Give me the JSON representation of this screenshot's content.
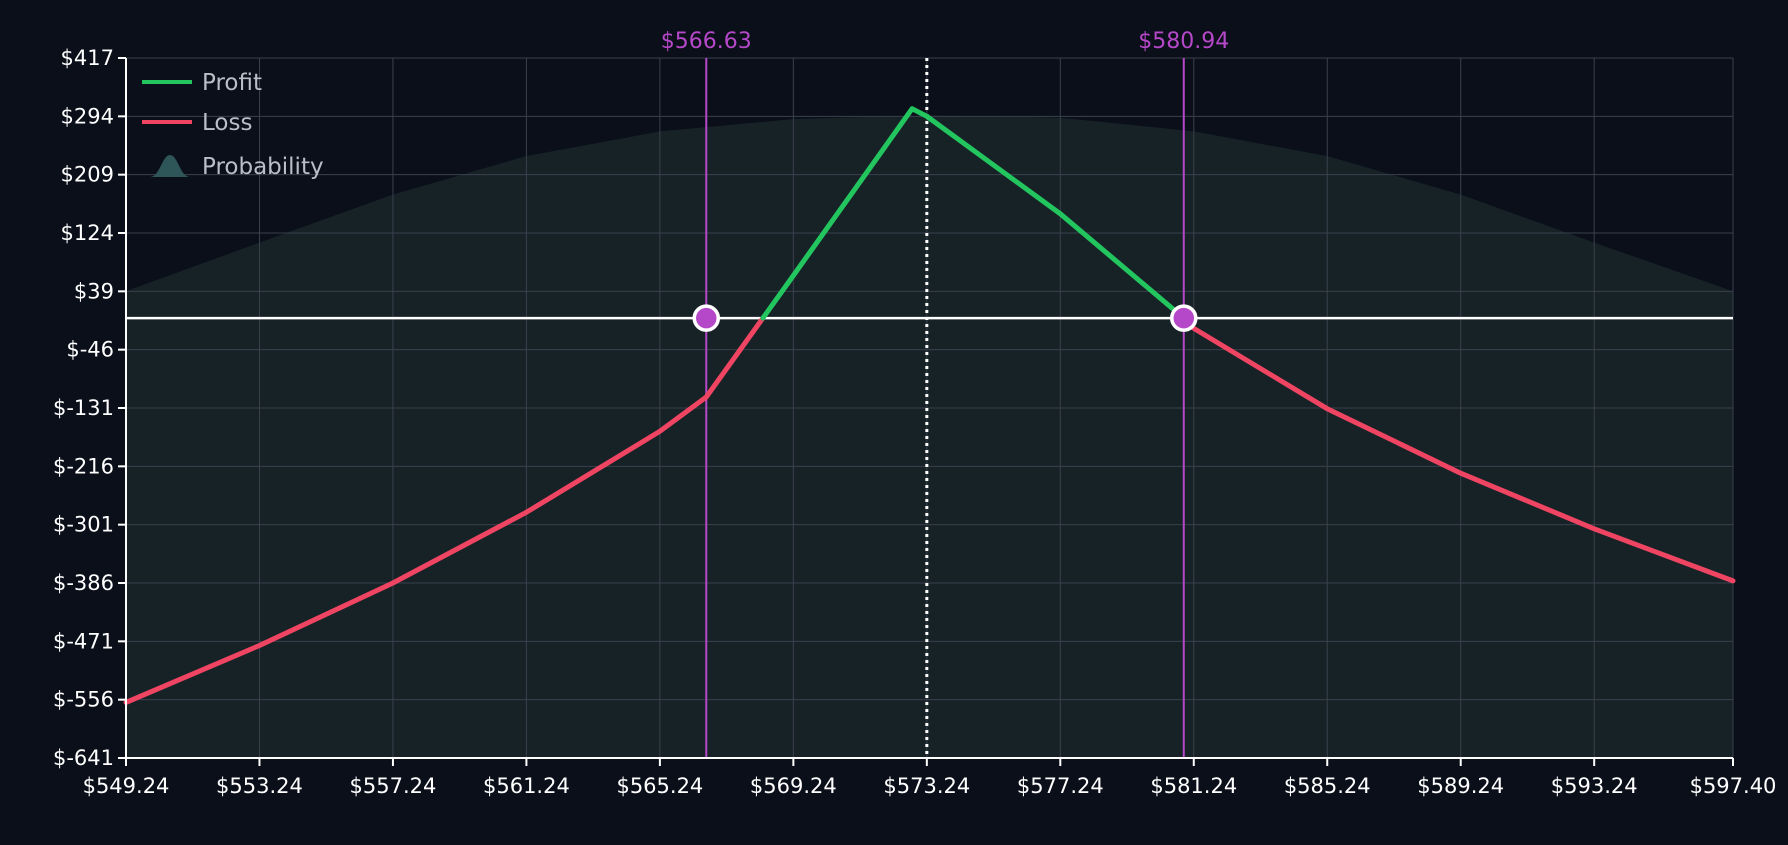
{
  "chart_data": {
    "type": "line",
    "title": "",
    "xlabel": "",
    "ylabel": "",
    "xlim": [
      549.24,
      597.4
    ],
    "ylim": [
      -641,
      417
    ],
    "x_ticks": [
      "$549.24",
      "$553.24",
      "$557.24",
      "$561.24",
      "$565.24",
      "$569.24",
      "$573.24",
      "$577.24",
      "$581.24",
      "$585.24",
      "$589.24",
      "$593.24",
      "$597.40"
    ],
    "x_tick_values": [
      549.24,
      553.24,
      557.24,
      561.24,
      565.24,
      569.24,
      573.24,
      577.24,
      581.24,
      585.24,
      589.24,
      593.24,
      597.4
    ],
    "y_ticks": [
      "$417",
      "$294",
      "$209",
      "$124",
      "$39",
      "$-46",
      "$-131",
      "$-216",
      "$-301",
      "$-386",
      "$-471",
      "$-556",
      "$-641"
    ],
    "y_tick_values": [
      417,
      294,
      209,
      124,
      39,
      -46,
      -131,
      -216,
      -301,
      -386,
      -471,
      -556,
      -641
    ],
    "grid": true,
    "legend": {
      "placement": "top-left",
      "entries": [
        {
          "label": "Profit",
          "color": "#22c55e",
          "icon": "line-swatch"
        },
        {
          "label": "Loss",
          "color": "#ef4562",
          "icon": "line-swatch"
        },
        {
          "label": "Probability",
          "color": "#2e5558",
          "icon": "bell-curve-swatch"
        }
      ]
    },
    "current_price": 573.24,
    "breakevens": [
      {
        "label": "$566.63",
        "value": 566.63
      },
      {
        "label": "$580.94",
        "value": 580.94
      }
    ],
    "series": [
      {
        "kind": "pnl",
        "x": [
          549.24,
          553.24,
          557.24,
          561.24,
          565.24,
          566.63,
          569.24,
          572.8,
          573.24,
          577.24,
          580.94,
          581.24,
          585.24,
          589.24,
          593.24,
          597.4
        ],
        "y": [
          -560,
          -477,
          -386,
          -283,
          -165,
          -115,
          62,
          310,
          294,
          152,
          0,
          -15,
          -132,
          -226,
          -307,
          -383
        ]
      },
      {
        "kind": "probability",
        "x": [
          549.24,
          553.24,
          557.24,
          561.24,
          565.24,
          569.24,
          573.24,
          577.24,
          581.24,
          585.24,
          589.24,
          593.24,
          597.4
        ],
        "y": [
          39,
          110,
          180,
          236,
          272,
          290,
          296,
          292,
          272,
          236,
          180,
          110,
          39
        ]
      }
    ],
    "colors": {
      "background": "#0b0f1a",
      "grid": "#3a404c",
      "axis": "#ffffff",
      "profit": "#22c55e",
      "loss": "#ef4562",
      "breakeven": "#b548c8",
      "probability_fill": "#182428",
      "zero_line": "#ffffff"
    }
  }
}
